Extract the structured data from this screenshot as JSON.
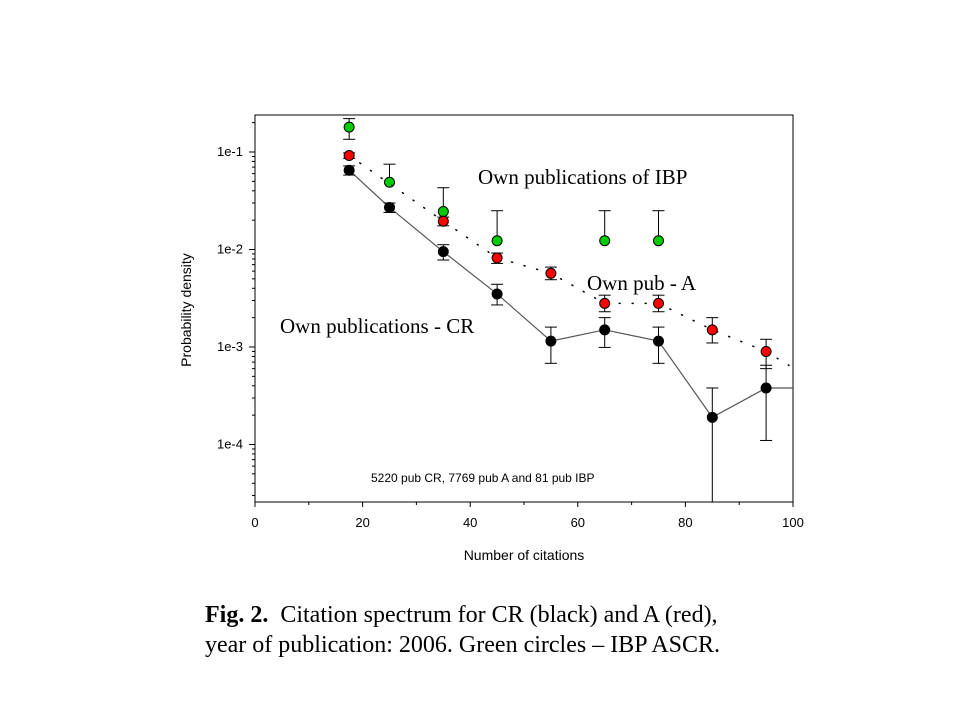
{
  "chart_data": {
    "type": "scatter",
    "xlabel": "Number of citations",
    "ylabel": "Probability density",
    "xlim": [
      0,
      100
    ],
    "ylim": [
      3e-05,
      0.3
    ],
    "y_scale": "log",
    "x_ticks": [
      "0",
      "20",
      "40",
      "60",
      "80",
      "100"
    ],
    "y_ticks": [
      "1e-1",
      "1e-2",
      "1e-3",
      "1e-4"
    ],
    "grid": false,
    "series": [
      {
        "name": "Own publications - CR",
        "color": "#000000",
        "style": "solid line with markers",
        "x": [
          17.5,
          25,
          35,
          45,
          55,
          65,
          75,
          85,
          95
        ],
        "y": [
          0.065,
          0.027,
          0.0095,
          0.0035,
          0.00115,
          0.0015,
          0.00115,
          0.00019,
          0.00038
        ],
        "err_low": [
          0.058,
          0.024,
          0.0078,
          0.0027,
          0.00068,
          0.00099,
          0.00068,
          2e-05,
          0.00011
        ],
        "err_high": [
          0.072,
          0.03,
          0.0112,
          0.0044,
          0.0016,
          0.002,
          0.0016,
          0.00038,
          0.00065
        ]
      },
      {
        "name": "Own pub - A",
        "color": "#ff0000",
        "style": "dotted line with markers",
        "x": [
          17.5,
          35,
          45,
          55,
          65,
          75,
          85,
          95
        ],
        "y": [
          0.092,
          0.0195,
          0.0082,
          0.0057,
          0.0028,
          0.0028,
          0.0015,
          0.0009
        ],
        "err_low": [
          0.086,
          0.0175,
          0.0072,
          0.0049,
          0.0023,
          0.0023,
          0.0011,
          0.0006
        ],
        "err_high": [
          0.098,
          0.0215,
          0.0092,
          0.0066,
          0.0034,
          0.0034,
          0.002,
          0.0012
        ]
      },
      {
        "name": "Own publications of IBP",
        "color": "#00cc00",
        "style": "markers only",
        "x": [
          17.5,
          25,
          35,
          45,
          65,
          75
        ],
        "y": [
          0.18,
          0.049,
          0.0245,
          0.0123,
          0.0123,
          0.0123
        ],
        "err_low": [
          0.135,
          0.0,
          0.0,
          0.0,
          0.0,
          0.0
        ],
        "err_high": [
          0.22,
          0.075,
          0.043,
          0.025,
          0.025,
          0.025
        ]
      }
    ],
    "annotations": [
      "Own publications of IBP",
      "Own pub - A",
      "Own publications - CR",
      "5220 pub CR, 7769 pub A and 81 pub IBP"
    ]
  },
  "caption": {
    "fig_label": "Fig. 2.",
    "line1": "Citation spectrum for CR (black) and A (red),",
    "line2": "year of publication: 2006. Green circles – IBP ASCR."
  }
}
